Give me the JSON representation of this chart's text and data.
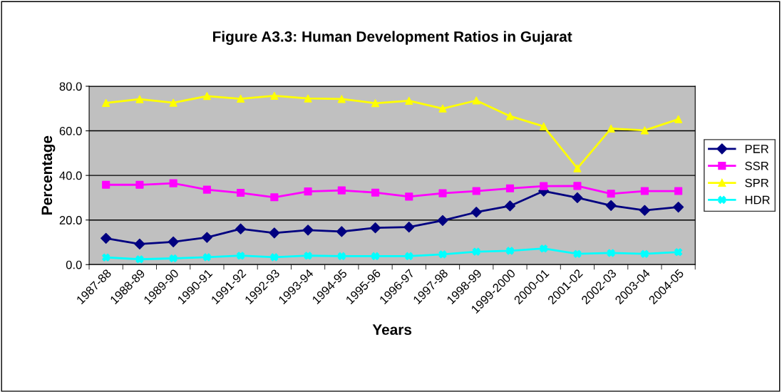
{
  "chart_data": {
    "type": "line",
    "title": "Figure A3.3: Human Development Ratios in Gujarat",
    "xlabel": "Years",
    "ylabel": "Percentage",
    "categories": [
      "1987-88",
      "1988-89",
      "1989-90",
      "1990-91",
      "1991-92",
      "1992-93",
      "1993-94",
      "1994-95",
      "1995-96",
      "1996-97",
      "1997-98",
      "1998-99",
      "1999-2000",
      "2000-01",
      "2001-02",
      "2002-03",
      "2003-04",
      "2004-05"
    ],
    "series": [
      {
        "name": "PER",
        "color": "#000080",
        "marker": "diamond",
        "values": [
          11.8,
          9.2,
          10.2,
          12.2,
          16.0,
          14.2,
          15.5,
          14.8,
          16.5,
          16.8,
          19.8,
          23.5,
          26.3,
          33.0,
          30.0,
          26.5,
          24.3,
          25.8
        ]
      },
      {
        "name": "SSR",
        "color": "#ff00ff",
        "marker": "square",
        "values": [
          35.8,
          35.8,
          36.5,
          33.6,
          32.2,
          30.2,
          32.8,
          33.3,
          32.3,
          30.5,
          32.0,
          33.0,
          34.2,
          35.2,
          35.3,
          31.8,
          33.0,
          33.0
        ]
      },
      {
        "name": "SPR",
        "color": "#ffff00",
        "marker": "triangle",
        "values": [
          72.5,
          74.2,
          72.6,
          75.6,
          74.4,
          75.7,
          74.5,
          74.3,
          72.4,
          73.5,
          70.0,
          73.6,
          66.6,
          62.0,
          43.2,
          61.0,
          60.2,
          65.2
        ]
      },
      {
        "name": "HDR",
        "color": "#00ffff",
        "marker": "cross",
        "values": [
          3.2,
          2.4,
          2.8,
          3.3,
          4.0,
          3.3,
          4.0,
          3.8,
          3.8,
          3.8,
          4.6,
          5.8,
          6.2,
          7.2,
          4.8,
          5.2,
          4.8,
          5.6
        ]
      }
    ],
    "ylim": [
      0,
      80
    ],
    "yticks": [
      {
        "value": 0,
        "label": "0.0"
      },
      {
        "value": 20,
        "label": "20.0"
      },
      {
        "value": 40,
        "label": "40.0"
      },
      {
        "value": 60,
        "label": "60.0"
      },
      {
        "value": 80,
        "label": "80.0"
      }
    ],
    "grid": "y",
    "legend": "right",
    "line_style": "solid"
  }
}
